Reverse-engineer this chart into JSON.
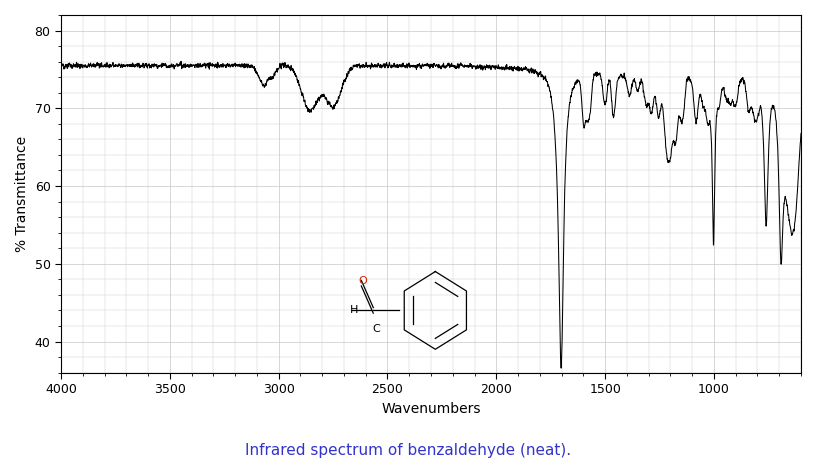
{
  "title": "Infrared spectrum of benzaldehyde (neat).",
  "xlabel": "Wavenumbers",
  "ylabel": "% Transmittance",
  "xlim": [
    4000,
    600
  ],
  "ylim": [
    36,
    82
  ],
  "yticks": [
    40,
    50,
    60,
    70,
    80
  ],
  "xticks": [
    4000,
    3500,
    3000,
    2500,
    2000,
    1500,
    1000
  ],
  "line_color": "#000000",
  "background_color": "#ffffff",
  "grid_color": "#c8c8c8",
  "title_color": "#3333cc",
  "title_fontsize": 11,
  "xlabel_fontsize": 10,
  "ylabel_fontsize": 10
}
